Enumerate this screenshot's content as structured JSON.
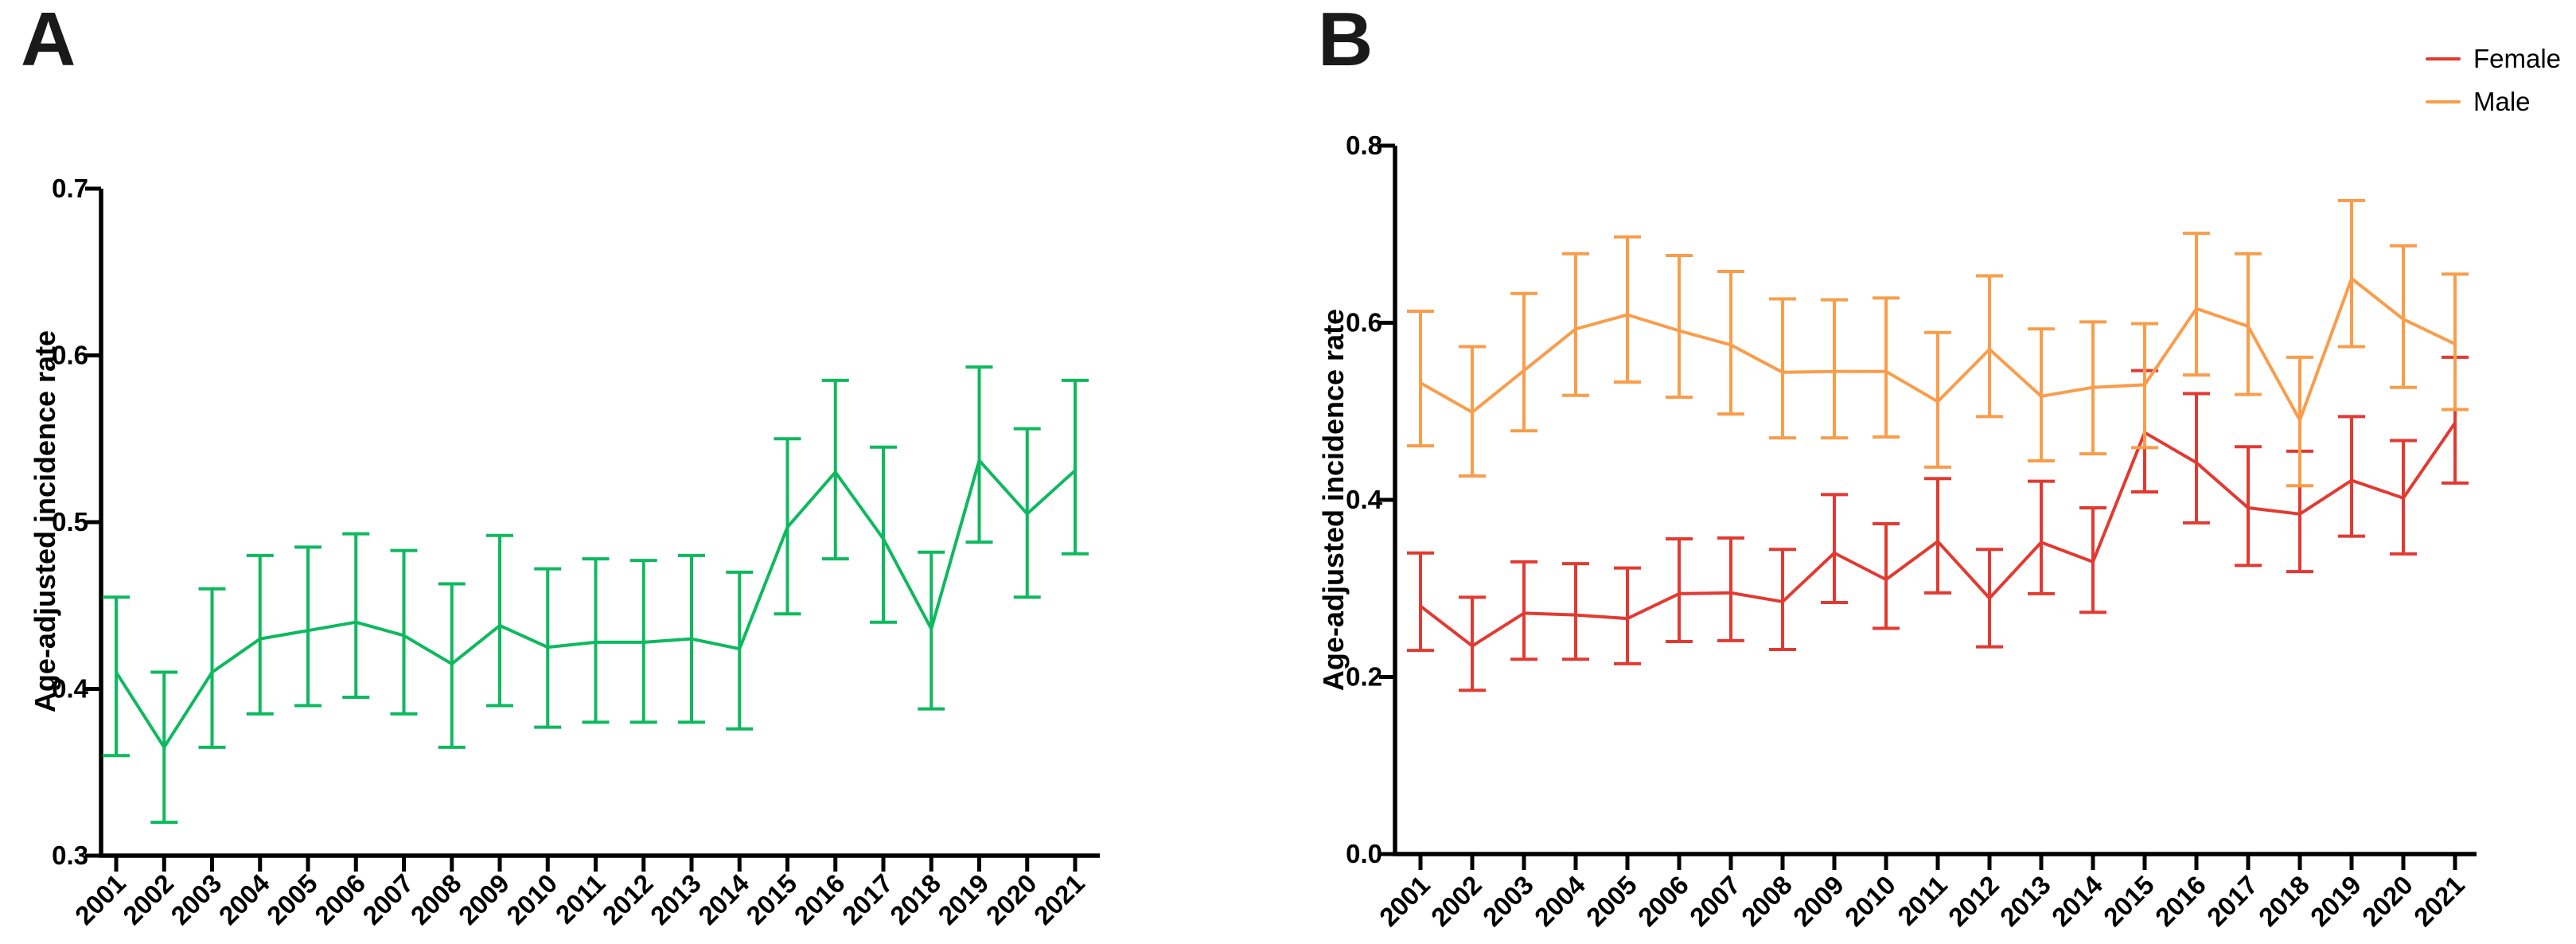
{
  "panels": {
    "A": {
      "letter": "A",
      "y_axis_title": "Age-adjusted incidence rate"
    },
    "B": {
      "letter": "B",
      "y_axis_title": "Age-adjusted incidence rate"
    }
  },
  "legend": {
    "position": "top-right",
    "items": [
      {
        "label": "Female",
        "color": "#e23a31"
      },
      {
        "label": "Male",
        "color": "#f99d4b"
      }
    ]
  },
  "chart_data": [
    {
      "type": "line",
      "panel": "A",
      "title": "",
      "xlabel": "",
      "ylabel": "Age-adjusted incidence rate",
      "grid": false,
      "error_bars": true,
      "ylim": [
        0.3,
        0.7
      ],
      "yticks": [
        0.3,
        0.4,
        0.5,
        0.6,
        0.7
      ],
      "ytick_labels": [
        "0.3",
        "0.4",
        "0.5",
        "0.6",
        "0.7"
      ],
      "x": [
        "2001",
        "2002",
        "2003",
        "2004",
        "2005",
        "2006",
        "2007",
        "2008",
        "2009",
        "2010",
        "2011",
        "2012",
        "2013",
        "2014",
        "2015",
        "2016",
        "2017",
        "2018",
        "2019",
        "2020",
        "2021"
      ],
      "series": [
        {
          "color": "#0eb95f",
          "values": [
            0.41,
            0.365,
            0.41,
            0.43,
            0.435,
            0.44,
            0.432,
            0.415,
            0.438,
            0.425,
            0.428,
            0.428,
            0.43,
            0.424,
            0.497,
            0.53,
            0.49,
            0.436,
            0.537,
            0.505,
            0.531
          ],
          "ci_low": [
            0.36,
            0.32,
            0.365,
            0.385,
            0.39,
            0.395,
            0.385,
            0.365,
            0.39,
            0.377,
            0.38,
            0.38,
            0.38,
            0.376,
            0.445,
            0.478,
            0.44,
            0.388,
            0.488,
            0.455,
            0.481
          ],
          "ci_high": [
            0.455,
            0.41,
            0.46,
            0.48,
            0.485,
            0.493,
            0.483,
            0.463,
            0.492,
            0.472,
            0.478,
            0.477,
            0.48,
            0.47,
            0.55,
            0.585,
            0.545,
            0.482,
            0.593,
            0.556,
            0.585
          ]
        }
      ]
    },
    {
      "type": "line",
      "panel": "B",
      "title": "",
      "xlabel": "",
      "ylabel": "Age-adjusted incidence rate",
      "grid": false,
      "error_bars": true,
      "legend_position": "top-right",
      "ylim": [
        0.0,
        0.8
      ],
      "yticks": [
        0.0,
        0.2,
        0.4,
        0.6,
        0.8
      ],
      "ytick_labels": [
        "0.0",
        "0.2",
        "0.4",
        "0.6",
        "0.8"
      ],
      "x": [
        "2001",
        "2002",
        "2003",
        "2004",
        "2005",
        "2006",
        "2007",
        "2008",
        "2009",
        "2010",
        "2011",
        "2012",
        "2013",
        "2014",
        "2015",
        "2016",
        "2017",
        "2018",
        "2019",
        "2020",
        "2021"
      ],
      "series": [
        {
          "name": "Female",
          "color": "#e23a31",
          "values": [
            0.28,
            0.235,
            0.272,
            0.27,
            0.266,
            0.294,
            0.295,
            0.285,
            0.34,
            0.31,
            0.353,
            0.289,
            0.352,
            0.33,
            0.476,
            0.442,
            0.391,
            0.384,
            0.422,
            0.402,
            0.487
          ],
          "ci_low": [
            0.23,
            0.185,
            0.22,
            0.22,
            0.215,
            0.24,
            0.241,
            0.231,
            0.284,
            0.255,
            0.295,
            0.234,
            0.294,
            0.273,
            0.409,
            0.374,
            0.326,
            0.319,
            0.359,
            0.339,
            0.419
          ],
          "ci_high": [
            0.34,
            0.29,
            0.33,
            0.328,
            0.323,
            0.356,
            0.357,
            0.344,
            0.406,
            0.373,
            0.424,
            0.344,
            0.421,
            0.391,
            0.546,
            0.52,
            0.46,
            0.455,
            0.494,
            0.467,
            0.561
          ]
        },
        {
          "name": "Male",
          "color": "#f99d4b",
          "values": [
            0.532,
            0.499,
            0.546,
            0.593,
            0.609,
            0.591,
            0.575,
            0.544,
            0.545,
            0.545,
            0.511,
            0.57,
            0.517,
            0.527,
            0.53,
            0.616,
            0.596,
            0.49,
            0.65,
            0.604,
            0.576
          ],
          "ci_low": [
            0.461,
            0.427,
            0.478,
            0.518,
            0.533,
            0.516,
            0.497,
            0.47,
            0.47,
            0.471,
            0.437,
            0.494,
            0.444,
            0.452,
            0.459,
            0.541,
            0.519,
            0.416,
            0.573,
            0.527,
            0.502
          ],
          "ci_high": [
            0.613,
            0.573,
            0.633,
            0.678,
            0.697,
            0.676,
            0.658,
            0.627,
            0.626,
            0.628,
            0.589,
            0.653,
            0.593,
            0.601,
            0.599,
            0.701,
            0.678,
            0.561,
            0.738,
            0.687,
            0.655
          ]
        }
      ]
    }
  ]
}
